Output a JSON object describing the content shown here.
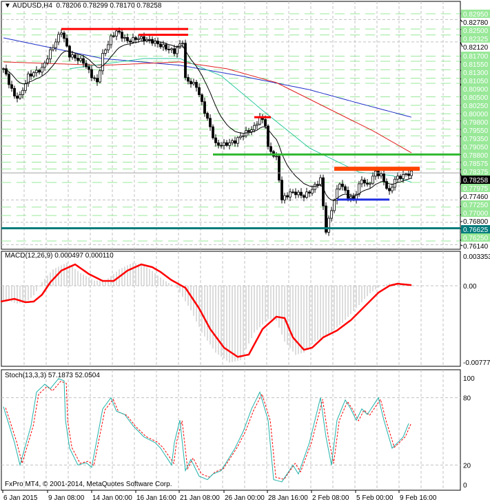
{
  "header": {
    "symbol": "AUDUSD,H4",
    "ohlc": "0.78206 0.78299 0.78170 0.78258"
  },
  "macd_label": "MACD(12,26,9) 0.000497 0.000110",
  "stoch_label": "Stoch(13,3,3) 57.1873 52.0504",
  "copyright": "FxPro MT4, © 2001-2014, MetaQuotes Software Corp.",
  "colors": {
    "level_box": "#98E898",
    "current_box": "#000000",
    "support_box": "#007B7B",
    "ma_slow": "#1E2EC8",
    "ma_mid": "#E02020",
    "ma_fast_green": "#2EC8A0",
    "ma_fast": "#000000",
    "macd_signal": "#FF0000",
    "stoch_main": "#20B2AA",
    "stoch_signal": "#FF0000"
  },
  "chart_data": [
    {
      "type": "candlestick",
      "title": "AUDUSD,H4",
      "ylim": [
        0.7614,
        0.8295
      ],
      "price_levels": [
        "0.82950",
        "0.82500",
        "0.82325",
        "0.81700",
        "0.81550",
        "0.81300",
        "0.81050",
        "0.80900",
        "0.80500",
        "0.80250",
        "0.80000",
        "0.79800",
        "0.79550",
        "0.79350",
        "0.79050",
        "0.78800",
        "0.78575",
        "0.78375",
        "0.77975",
        "0.77250",
        "0.77000",
        "0.76250"
      ],
      "grid_ticks": [
        "0.82780",
        "0.82120",
        "0.77460",
        "0.76800",
        "0.76140"
      ],
      "current_price": "0.78258",
      "support_level": "0.76625",
      "x_ticks": [
        "6 Jan 2015",
        "9 Jan 08:00",
        "14 Jan 00:00",
        "16 Jan 16:00",
        "21 Jan 08:00",
        "26 Jan 00:00",
        "28 Jan 16:00",
        "2 Feb 08:00",
        "5 Feb 00:00",
        "9 Feb 16:00"
      ],
      "close_path": [
        [
          0,
          0.8133
        ],
        [
          4,
          0.8051
        ],
        [
          6,
          0.8051
        ],
        [
          9,
          0.8112
        ],
        [
          14,
          0.8133
        ],
        [
          17,
          0.8183
        ],
        [
          21,
          0.8244
        ],
        [
          24,
          0.8173
        ],
        [
          29,
          0.8153
        ],
        [
          32,
          0.8112
        ],
        [
          34,
          0.8092
        ],
        [
          36,
          0.8173
        ],
        [
          39,
          0.8224
        ],
        [
          41,
          0.8244
        ],
        [
          45,
          0.8214
        ],
        [
          49,
          0.8224
        ],
        [
          54,
          0.8214
        ],
        [
          59,
          0.8194
        ],
        [
          62,
          0.8183
        ],
        [
          65,
          0.8214
        ],
        [
          66,
          0.8102
        ],
        [
          70,
          0.8082
        ],
        [
          72,
          0.8031
        ],
        [
          75,
          0.796
        ],
        [
          77,
          0.7909
        ],
        [
          80,
          0.7909
        ],
        [
          84,
          0.7919
        ],
        [
          87,
          0.794
        ],
        [
          91,
          0.796
        ],
        [
          93,
          0.799
        ],
        [
          95,
          0.797
        ],
        [
          96,
          0.7899
        ],
        [
          99,
          0.7869
        ],
        [
          101,
          0.7747
        ],
        [
          104,
          0.7767
        ],
        [
          106,
          0.7767
        ],
        [
          109,
          0.7757
        ],
        [
          112,
          0.7777
        ],
        [
          115,
          0.7808
        ],
        [
          116,
          0.7727
        ],
        [
          117,
          0.7656
        ],
        [
          120,
          0.7747
        ],
        [
          122,
          0.7798
        ],
        [
          125,
          0.7757
        ],
        [
          127,
          0.7747
        ],
        [
          130,
          0.7808
        ],
        [
          132,
          0.7787
        ],
        [
          135,
          0.7828
        ],
        [
          137,
          0.7818
        ],
        [
          140,
          0.7767
        ],
        [
          142,
          0.7808
        ],
        [
          145,
          0.7818
        ],
        [
          148,
          0.7826
        ]
      ],
      "moving_averages": {
        "slow_blue": [
          [
            0,
            0.8224
          ],
          [
            36,
            0.8163
          ],
          [
            64,
            0.8143
          ],
          [
            86,
            0.8112
          ],
          [
            111,
            0.8071
          ],
          [
            129,
            0.8031
          ],
          [
            148,
            0.799
          ]
        ],
        "mid_red": [
          [
            0,
            0.8153
          ],
          [
            36,
            0.8143
          ],
          [
            64,
            0.8153
          ],
          [
            81,
            0.8133
          ],
          [
            99,
            0.8092
          ],
          [
            114,
            0.8031
          ],
          [
            134,
            0.795
          ],
          [
            148,
            0.7885
          ]
        ],
        "green": [
          [
            24,
            0.8133
          ],
          [
            51,
            0.8163
          ],
          [
            64,
            0.8163
          ],
          [
            79,
            0.8112
          ],
          [
            94,
            0.801
          ],
          [
            111,
            0.7899
          ],
          [
            129,
            0.7828
          ],
          [
            141,
            0.7818
          ],
          [
            148,
            0.7798
          ]
        ]
      },
      "drawn_lines": [
        {
          "color": "#FF0000",
          "price": 0.825,
          "from": 21,
          "to": 67
        },
        {
          "color": "#FF0000",
          "price": 0.8233,
          "from": 49,
          "to": 67
        },
        {
          "color": "#FF0000",
          "price": 0.799,
          "from": 91,
          "to": 97
        },
        {
          "color": "#2EB82E",
          "price": 0.788,
          "from": 76,
          "to": 166
        },
        {
          "color": "#FF4500",
          "price": 0.7838,
          "from": 120,
          "to": 151
        },
        {
          "color": "#1E2EE0",
          "price": 0.7747,
          "from": 121,
          "to": 140
        }
      ]
    },
    {
      "type": "line",
      "title": "MACD(12,26,9) 0.000497 0.000110",
      "ylim": [
        -0.007774,
        0.003353
      ],
      "y_ticks": [
        "0.003353",
        "0.00",
        "-0.007774"
      ],
      "signal": [
        [
          -1,
          -0.00171
        ],
        [
          4,
          -0.00142
        ],
        [
          8,
          -0.00179
        ],
        [
          11,
          -0.00171
        ],
        [
          14,
          -0.00097
        ],
        [
          17,
          0.00037
        ],
        [
          21,
          0.00164
        ],
        [
          26,
          0.00231
        ],
        [
          31,
          0.00127
        ],
        [
          36,
          0.00052
        ],
        [
          40,
          0.00052
        ],
        [
          45,
          0.00164
        ],
        [
          50,
          0.00231
        ],
        [
          54,
          0.00201
        ],
        [
          57,
          0.00149
        ],
        [
          61,
          0.0006
        ],
        [
          66,
          -0.00022
        ],
        [
          71,
          -0.00246
        ],
        [
          75,
          -0.00469
        ],
        [
          80,
          -0.0067
        ],
        [
          85,
          -0.0077
        ],
        [
          89,
          -0.00745
        ],
        [
          94,
          -0.00469
        ],
        [
          99,
          -0.00335
        ],
        [
          102,
          -0.0035
        ],
        [
          105,
          -0.00559
        ],
        [
          109,
          -0.00693
        ],
        [
          112,
          -0.0067
        ],
        [
          116,
          -0.00559
        ],
        [
          121,
          -0.00484
        ],
        [
          126,
          -0.00373
        ],
        [
          131,
          -0.00224
        ],
        [
          136,
          -0.00075
        ],
        [
          140,
          0
        ],
        [
          143,
          0.00022
        ],
        [
          148,
          7e-05
        ]
      ]
    },
    {
      "type": "line",
      "title": "Stoch(13,3,3) 57.1873 52.0504",
      "ylim": [
        0,
        100
      ],
      "y_ticks": [
        "100",
        "80",
        "20",
        "0"
      ],
      "main": [
        [
          0,
          72
        ],
        [
          4,
          40
        ],
        [
          6,
          20
        ],
        [
          10,
          55
        ],
        [
          12,
          85
        ],
        [
          15,
          92
        ],
        [
          17,
          88
        ],
        [
          20,
          97
        ],
        [
          22,
          95
        ],
        [
          22.5,
          60
        ],
        [
          24,
          35
        ],
        [
          27,
          20
        ],
        [
          30,
          22
        ],
        [
          32,
          18
        ],
        [
          36,
          70
        ],
        [
          39,
          80
        ],
        [
          41,
          68
        ],
        [
          44,
          65
        ],
        [
          47,
          55
        ],
        [
          51,
          45
        ],
        [
          55,
          40
        ],
        [
          57,
          35
        ],
        [
          61,
          20
        ],
        [
          62,
          40
        ],
        [
          64,
          60
        ],
        [
          66,
          15
        ],
        [
          68,
          25
        ],
        [
          71,
          10
        ],
        [
          74,
          7
        ],
        [
          76,
          12
        ],
        [
          79,
          15
        ],
        [
          84,
          35
        ],
        [
          87,
          50
        ],
        [
          90,
          70
        ],
        [
          93,
          85
        ],
        [
          96,
          60
        ],
        [
          98,
          7
        ],
        [
          101,
          5
        ],
        [
          105,
          20
        ],
        [
          107,
          12
        ],
        [
          111,
          40
        ],
        [
          115,
          80
        ],
        [
          117,
          45
        ],
        [
          119,
          20
        ],
        [
          121,
          60
        ],
        [
          124,
          78
        ],
        [
          126,
          70
        ],
        [
          128,
          60
        ],
        [
          130,
          70
        ],
        [
          132,
          65
        ],
        [
          136,
          80
        ],
        [
          138,
          60
        ],
        [
          141,
          35
        ],
        [
          143,
          40
        ],
        [
          145,
          45
        ],
        [
          147,
          57
        ]
      ]
    }
  ]
}
